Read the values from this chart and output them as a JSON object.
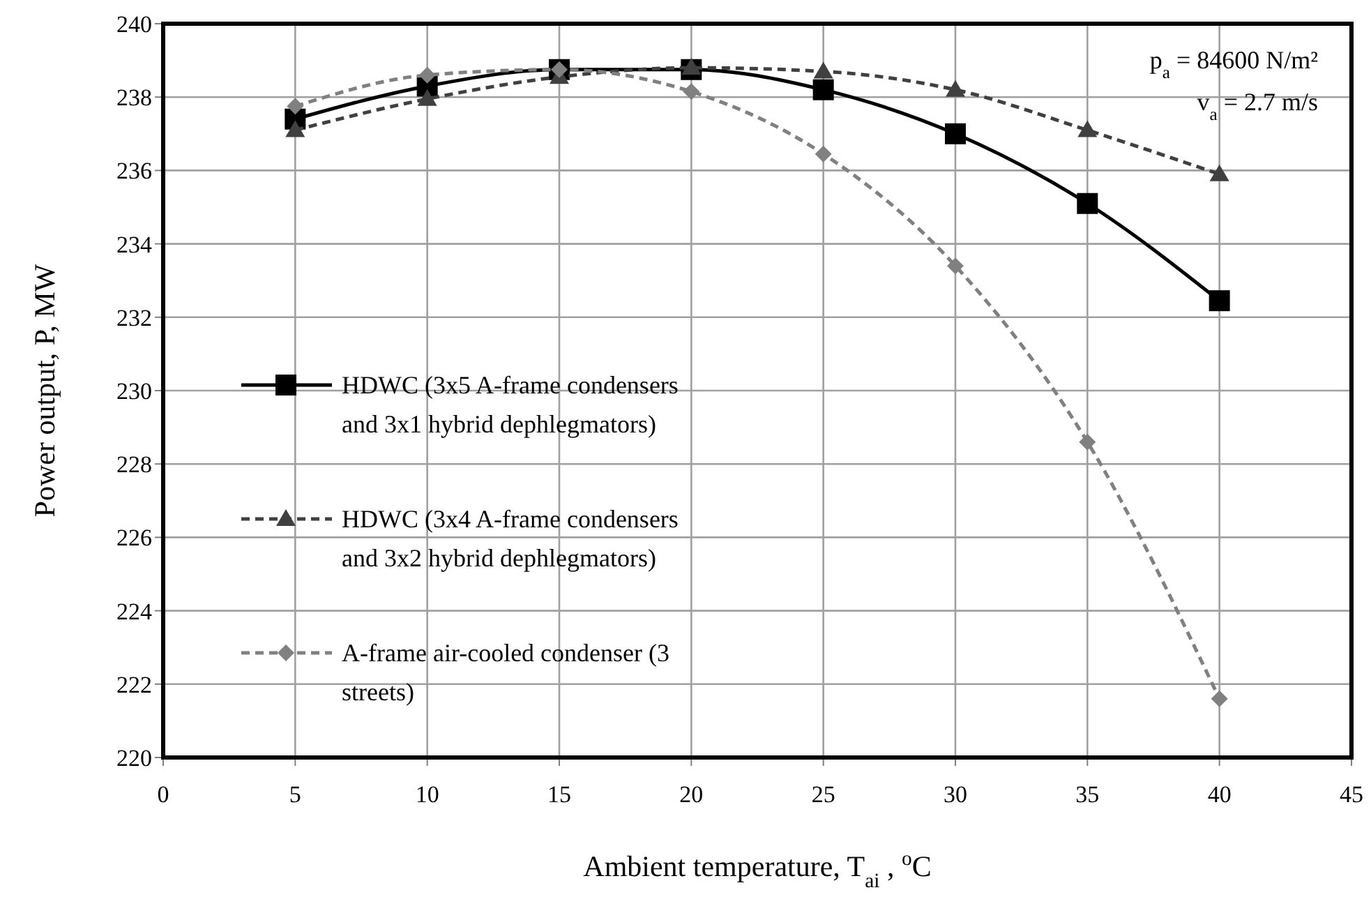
{
  "chart_data": {
    "type": "line",
    "xlabel": "Ambient temperature, T$_{ai}$ , $^{o}$C",
    "ylabel": "Power output, P, MW",
    "x": [
      5,
      10,
      15,
      20,
      25,
      30,
      35,
      40
    ],
    "series": [
      {
        "name": "HDWC (3x5 A-frame condensers and 3x1 hybrid dephlegmators)",
        "color": "#000000",
        "marker": "square",
        "line_style": "solid",
        "values": [
          237.4,
          238.3,
          238.75,
          238.75,
          238.2,
          237.0,
          235.1,
          232.45
        ]
      },
      {
        "name": "HDWC (3x4 A-frame condensers and 3x2 hybrid dephlegmators)",
        "color": "#404040",
        "marker": "triangle",
        "line_style": "dashed",
        "values": [
          237.1,
          237.95,
          238.55,
          238.8,
          238.7,
          238.2,
          237.1,
          235.9
        ]
      },
      {
        "name": "A-frame air-cooled condenser (3 streets)",
        "color": "#808080",
        "marker": "diamond",
        "line_style": "dashed",
        "values": [
          237.75,
          238.6,
          238.75,
          238.15,
          236.45,
          233.4,
          228.6,
          221.6
        ]
      }
    ],
    "xlim": [
      0,
      45
    ],
    "xticks": [
      0,
      5,
      10,
      15,
      20,
      25,
      30,
      35,
      40,
      45
    ],
    "ylim": [
      220,
      240
    ],
    "yticks": [
      220,
      222,
      224,
      226,
      228,
      230,
      232,
      234,
      236,
      238,
      240
    ],
    "grid": true,
    "legend": "left",
    "annotations": [
      "p$_{a}$ = 84600 N/m²",
      "v$_{a}$ = 2.7 m/s"
    ]
  }
}
